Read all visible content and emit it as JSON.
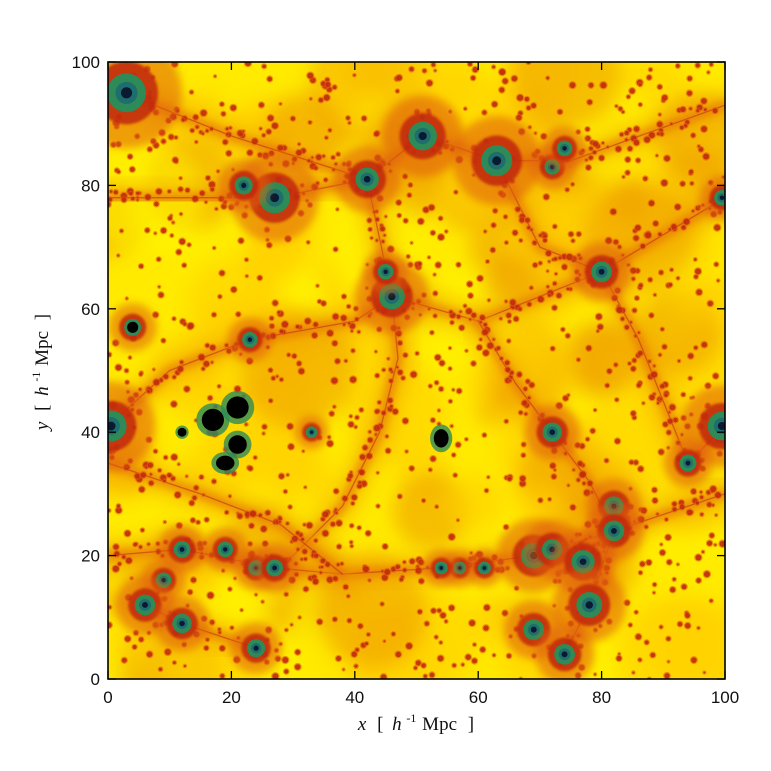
{
  "chart_data": {
    "type": "heatmap",
    "title": "",
    "xlabel_parts": {
      "var": "x",
      "open": "[",
      "h": "h",
      "exp": "-1",
      "unit": "Mpc",
      "close": "]"
    },
    "ylabel_parts": {
      "var": "y",
      "open": "[",
      "h": "h",
      "exp": "-1",
      "unit": "Mpc",
      "close": "]"
    },
    "xlim": [
      0,
      100
    ],
    "ylim": [
      0,
      100
    ],
    "x_ticks": [
      0,
      20,
      40,
      60,
      80,
      100
    ],
    "y_ticks": [
      0,
      20,
      40,
      60,
      80,
      100
    ],
    "grid": false,
    "colormap": [
      "#fff200",
      "#ffd000",
      "#f0a000",
      "#e06010",
      "#c0280a",
      "#2e8b57",
      "#1f6e6e",
      "#0a1a30",
      "#000000"
    ],
    "background_color": "#ffea00",
    "features": {
      "halos": [
        {
          "x": 3,
          "y": 95,
          "size": 3.0
        },
        {
          "x": 51,
          "y": 88,
          "size": 2.2
        },
        {
          "x": 63,
          "y": 84,
          "size": 2.4
        },
        {
          "x": 42,
          "y": 81,
          "size": 1.8
        },
        {
          "x": 27,
          "y": 78,
          "size": 2.4
        },
        {
          "x": 22,
          "y": 80,
          "size": 1.4
        },
        {
          "x": 72,
          "y": 83,
          "size": 1.2
        },
        {
          "x": 74,
          "y": 86,
          "size": 1.2
        },
        {
          "x": 99.5,
          "y": 78,
          "size": 1.2
        },
        {
          "x": 80,
          "y": 66,
          "size": 1.6
        },
        {
          "x": 46,
          "y": 62,
          "size": 2.0
        },
        {
          "x": 45,
          "y": 66,
          "size": 1.2
        },
        {
          "x": 23,
          "y": 55,
          "size": 1.2
        },
        {
          "x": 4,
          "y": 57,
          "size": 1.3
        },
        {
          "x": 0.5,
          "y": 41,
          "size": 2.4
        },
        {
          "x": 99.5,
          "y": 41,
          "size": 2.2
        },
        {
          "x": 72,
          "y": 40,
          "size": 1.5
        },
        {
          "x": 94,
          "y": 35,
          "size": 1.3
        },
        {
          "x": 82,
          "y": 28,
          "size": 1.5
        },
        {
          "x": 82,
          "y": 24,
          "size": 1.6
        },
        {
          "x": 69,
          "y": 20,
          "size": 2.0
        },
        {
          "x": 72,
          "y": 21,
          "size": 1.6
        },
        {
          "x": 77,
          "y": 19,
          "size": 1.8
        },
        {
          "x": 78,
          "y": 12,
          "size": 2.0
        },
        {
          "x": 69,
          "y": 8,
          "size": 1.6
        },
        {
          "x": 74,
          "y": 4,
          "size": 1.6
        },
        {
          "x": 12,
          "y": 21,
          "size": 1.3
        },
        {
          "x": 19,
          "y": 21,
          "size": 1.2
        },
        {
          "x": 24,
          "y": 18,
          "size": 1.2
        },
        {
          "x": 27,
          "y": 18,
          "size": 1.3
        },
        {
          "x": 9,
          "y": 16,
          "size": 1.2
        },
        {
          "x": 6,
          "y": 12,
          "size": 1.6
        },
        {
          "x": 12,
          "y": 9,
          "size": 1.5
        },
        {
          "x": 24,
          "y": 5,
          "size": 1.4
        },
        {
          "x": 33,
          "y": 40,
          "size": 0.9
        },
        {
          "x": 57,
          "y": 18,
          "size": 1.0
        },
        {
          "x": 54,
          "y": 18,
          "size": 1.0
        },
        {
          "x": 61,
          "y": 18,
          "size": 1.0
        }
      ],
      "voids": [
        {
          "x": 17,
          "y": 42,
          "w": 3,
          "h": 3
        },
        {
          "x": 21,
          "y": 44,
          "w": 3,
          "h": 3
        },
        {
          "x": 21,
          "y": 38,
          "w": 2.5,
          "h": 2.5
        },
        {
          "x": 19,
          "y": 35,
          "w": 2.5,
          "h": 2
        },
        {
          "x": 54,
          "y": 39,
          "w": 2,
          "h": 2.5
        },
        {
          "x": 4,
          "y": 57,
          "w": 1.5,
          "h": 1.5
        },
        {
          "x": 12,
          "y": 40,
          "w": 1.2,
          "h": 1.2
        }
      ],
      "filaments": [
        [
          [
            0,
            96
          ],
          [
            20,
            88
          ],
          [
            42,
            81
          ],
          [
            51,
            88
          ],
          [
            63,
            84
          ],
          [
            75,
            84
          ],
          [
            100,
            93
          ]
        ],
        [
          [
            42,
            81
          ],
          [
            46,
            62
          ],
          [
            47,
            52
          ],
          [
            44,
            40
          ],
          [
            38,
            28
          ],
          [
            28,
            18
          ]
        ],
        [
          [
            46,
            62
          ],
          [
            60,
            58
          ],
          [
            80,
            66
          ],
          [
            100,
            78
          ]
        ],
        [
          [
            0,
            78
          ],
          [
            27,
            78
          ],
          [
            42,
            81
          ]
        ],
        [
          [
            80,
            66
          ],
          [
            86,
            55
          ],
          [
            94,
            35
          ],
          [
            100,
            41
          ]
        ],
        [
          [
            0,
            20
          ],
          [
            12,
            21
          ],
          [
            27,
            18
          ],
          [
            38,
            17
          ],
          [
            54,
            18
          ],
          [
            69,
            20
          ],
          [
            82,
            24
          ],
          [
            100,
            30
          ]
        ],
        [
          [
            72,
            40
          ],
          [
            78,
            32
          ],
          [
            82,
            24
          ],
          [
            78,
            12
          ],
          [
            74,
            4
          ]
        ],
        [
          [
            6,
            12
          ],
          [
            12,
            9
          ],
          [
            24,
            5
          ]
        ],
        [
          [
            0,
            41
          ],
          [
            10,
            50
          ],
          [
            23,
            55
          ],
          [
            40,
            58
          ],
          [
            46,
            62
          ]
        ],
        [
          [
            0,
            35
          ],
          [
            15,
            30
          ],
          [
            28,
            25
          ],
          [
            38,
            17
          ]
        ],
        [
          [
            60,
            58
          ],
          [
            66,
            48
          ],
          [
            72,
            40
          ]
        ],
        [
          [
            63,
            84
          ],
          [
            70,
            70
          ],
          [
            80,
            66
          ]
        ]
      ]
    }
  }
}
